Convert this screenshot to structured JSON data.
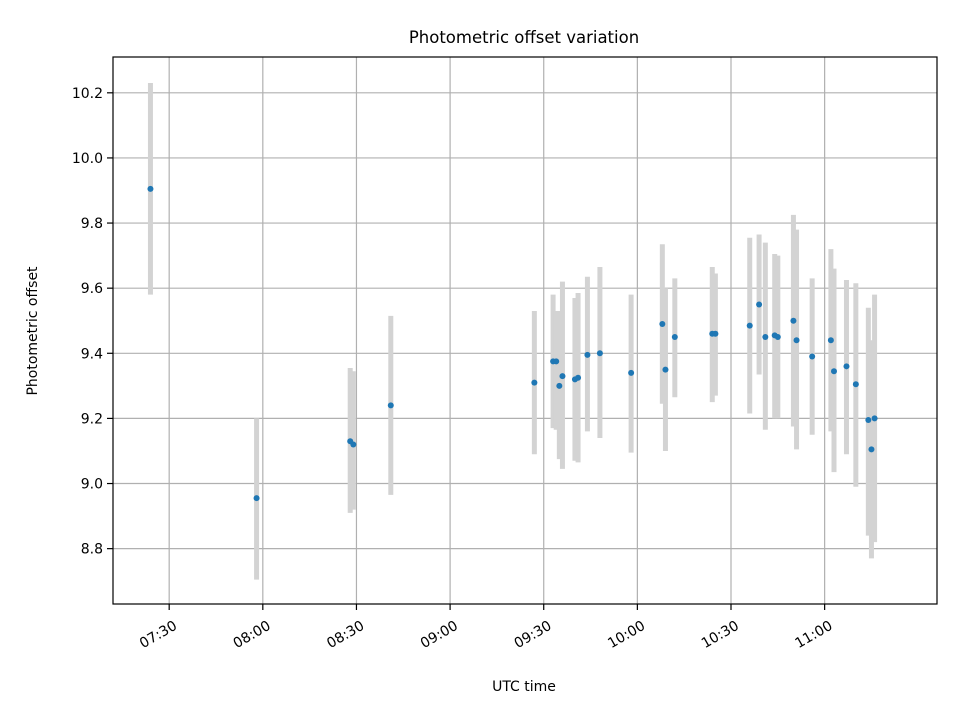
{
  "chart_data": {
    "type": "scatter",
    "title": "Photometric offset variation",
    "xlabel": "UTC time",
    "ylabel": "Photometric offset",
    "grid": true,
    "xlim": [
      "07:12",
      "11:36"
    ],
    "ylim": [
      8.63,
      10.31
    ],
    "x_ticks": [
      "07:30",
      "08:00",
      "08:30",
      "09:00",
      "09:30",
      "10:00",
      "10:30",
      "11:00"
    ],
    "y_ticks": [
      8.8,
      9.0,
      9.2,
      9.4,
      9.6,
      9.8,
      10.0,
      10.2
    ],
    "colors": {
      "point": "#1f77b4",
      "errorbar": "#d3d3d3",
      "grid": "#b0b0b0"
    },
    "points": [
      {
        "x": "07:24",
        "y": 9.905,
        "lo": 9.58,
        "hi": 10.23
      },
      {
        "x": "07:58",
        "y": 8.955,
        "lo": 8.705,
        "hi": 9.2
      },
      {
        "x": "08:28",
        "y": 9.13,
        "lo": 8.91,
        "hi": 9.355
      },
      {
        "x": "08:29",
        "y": 9.12,
        "lo": 8.92,
        "hi": 9.345
      },
      {
        "x": "08:41",
        "y": 9.24,
        "lo": 8.965,
        "hi": 9.515
      },
      {
        "x": "09:27",
        "y": 9.31,
        "lo": 9.09,
        "hi": 9.53
      },
      {
        "x": "09:33",
        "y": 9.375,
        "lo": 9.17,
        "hi": 9.58
      },
      {
        "x": "09:34",
        "y": 9.375,
        "lo": 9.165,
        "hi": 9.53
      },
      {
        "x": "09:35",
        "y": 9.3,
        "lo": 9.075,
        "hi": 9.53
      },
      {
        "x": "09:36",
        "y": 9.33,
        "lo": 9.045,
        "hi": 9.62
      },
      {
        "x": "09:40",
        "y": 9.32,
        "lo": 9.07,
        "hi": 9.57
      },
      {
        "x": "09:41",
        "y": 9.325,
        "lo": 9.065,
        "hi": 9.585
      },
      {
        "x": "09:44",
        "y": 9.395,
        "lo": 9.16,
        "hi": 9.635
      },
      {
        "x": "09:48",
        "y": 9.4,
        "lo": 9.14,
        "hi": 9.665
      },
      {
        "x": "09:58",
        "y": 9.34,
        "lo": 9.095,
        "hi": 9.58
      },
      {
        "x": "10:08",
        "y": 9.49,
        "lo": 9.245,
        "hi": 9.735
      },
      {
        "x": "10:09",
        "y": 9.35,
        "lo": 9.1,
        "hi": 9.6
      },
      {
        "x": "10:12",
        "y": 9.45,
        "lo": 9.265,
        "hi": 9.63
      },
      {
        "x": "10:24",
        "y": 9.46,
        "lo": 9.25,
        "hi": 9.665
      },
      {
        "x": "10:25",
        "y": 9.46,
        "lo": 9.27,
        "hi": 9.645
      },
      {
        "x": "10:36",
        "y": 9.485,
        "lo": 9.215,
        "hi": 9.755
      },
      {
        "x": "10:39",
        "y": 9.55,
        "lo": 9.335,
        "hi": 9.765
      },
      {
        "x": "10:41",
        "y": 9.45,
        "lo": 9.165,
        "hi": 9.74
      },
      {
        "x": "10:44",
        "y": 9.455,
        "lo": 9.2,
        "hi": 9.705
      },
      {
        "x": "10:45",
        "y": 9.45,
        "lo": 9.2,
        "hi": 9.7
      },
      {
        "x": "10:50",
        "y": 9.5,
        "lo": 9.175,
        "hi": 9.825
      },
      {
        "x": "10:51",
        "y": 9.44,
        "lo": 9.105,
        "hi": 9.78
      },
      {
        "x": "10:56",
        "y": 9.39,
        "lo": 9.15,
        "hi": 9.63
      },
      {
        "x": "11:02",
        "y": 9.44,
        "lo": 9.16,
        "hi": 9.72
      },
      {
        "x": "11:03",
        "y": 9.345,
        "lo": 9.035,
        "hi": 9.66
      },
      {
        "x": "11:07",
        "y": 9.36,
        "lo": 9.09,
        "hi": 9.625
      },
      {
        "x": "11:10",
        "y": 9.305,
        "lo": 8.99,
        "hi": 9.615
      },
      {
        "x": "11:14",
        "y": 9.195,
        "lo": 8.84,
        "hi": 9.54
      },
      {
        "x": "11:15",
        "y": 9.105,
        "lo": 8.77,
        "hi": 9.44
      },
      {
        "x": "11:16",
        "y": 9.2,
        "lo": 8.82,
        "hi": 9.58
      }
    ]
  }
}
